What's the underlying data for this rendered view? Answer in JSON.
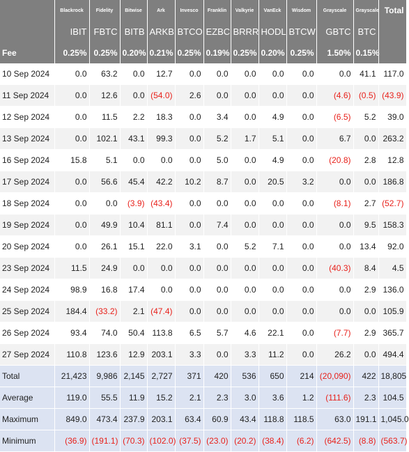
{
  "table": {
    "providers": [
      "Blackrock",
      "Fidelity",
      "Bitwise",
      "Ark",
      "Invesco",
      "Franklin",
      "Valkyrie",
      "VanEck",
      "Wisdom",
      "Grayscale",
      "Grayscale"
    ],
    "total_header": "Total",
    "tickers": [
      "IBIT",
      "FBTC",
      "BITB",
      "ARKB",
      "BTCO",
      "EZBC",
      "BRRR",
      "HODL",
      "BTCW",
      "GBTC",
      "BTC"
    ],
    "fee": {
      "label": "Fee",
      "values": [
        "0.25%",
        "0.25%",
        "0.20%",
        "0.21%",
        "0.25%",
        "0.19%",
        "0.25%",
        "0.20%",
        "0.25%",
        "1.50%",
        "0.15%"
      ],
      "total": ""
    },
    "days": [
      {
        "date": "10 Sep 2024",
        "values": [
          "0.0",
          "63.2",
          "0.0",
          "12.7",
          "0.0",
          "0.0",
          "0.0",
          "0.0",
          "0.0",
          "0.0",
          "41.1"
        ],
        "total": "117.0"
      },
      {
        "date": "11 Sep 2024",
        "values": [
          "0.0",
          "12.6",
          "0.0",
          "(54.0)",
          "2.6",
          "0.0",
          "0.0",
          "0.0",
          "0.0",
          "(4.6)",
          "(0.5)"
        ],
        "total": "(43.9)"
      },
      {
        "date": "12 Sep 2024",
        "values": [
          "0.0",
          "11.5",
          "2.2",
          "18.3",
          "0.0",
          "3.4",
          "0.0",
          "4.9",
          "0.0",
          "(6.5)",
          "5.2"
        ],
        "total": "39.0"
      },
      {
        "date": "13 Sep 2024",
        "values": [
          "0.0",
          "102.1",
          "43.1",
          "99.3",
          "0.0",
          "5.2",
          "1.7",
          "5.1",
          "0.0",
          "6.7",
          "0.0"
        ],
        "total": "263.2"
      },
      {
        "date": "16 Sep 2024",
        "values": [
          "15.8",
          "5.1",
          "0.0",
          "0.0",
          "0.0",
          "5.0",
          "0.0",
          "4.9",
          "0.0",
          "(20.8)",
          "2.8"
        ],
        "total": "12.8"
      },
      {
        "date": "17 Sep 2024",
        "values": [
          "0.0",
          "56.6",
          "45.4",
          "42.2",
          "10.2",
          "8.7",
          "0.0",
          "20.5",
          "3.2",
          "0.0",
          "0.0"
        ],
        "total": "186.8"
      },
      {
        "date": "18 Sep 2024",
        "values": [
          "0.0",
          "0.0",
          "(3.9)",
          "(43.4)",
          "0.0",
          "0.0",
          "0.0",
          "0.0",
          "0.0",
          "(8.1)",
          "2.7"
        ],
        "total": "(52.7)"
      },
      {
        "date": "19 Sep 2024",
        "values": [
          "0.0",
          "49.9",
          "10.4",
          "81.1",
          "0.0",
          "7.4",
          "0.0",
          "0.0",
          "0.0",
          "0.0",
          "9.5"
        ],
        "total": "158.3"
      },
      {
        "date": "20 Sep 2024",
        "values": [
          "0.0",
          "26.1",
          "15.1",
          "22.0",
          "3.1",
          "0.0",
          "5.2",
          "7.1",
          "0.0",
          "0.0",
          "13.4"
        ],
        "total": "92.0"
      },
      {
        "date": "23 Sep 2024",
        "values": [
          "11.5",
          "24.9",
          "0.0",
          "0.0",
          "0.0",
          "0.0",
          "0.0",
          "0.0",
          "0.0",
          "(40.3)",
          "8.4"
        ],
        "total": "4.5"
      },
      {
        "date": "24 Sep 2024",
        "values": [
          "98.9",
          "16.8",
          "17.4",
          "0.0",
          "0.0",
          "0.0",
          "0.0",
          "0.0",
          "0.0",
          "0.0",
          "2.9"
        ],
        "total": "136.0"
      },
      {
        "date": "25 Sep 2024",
        "values": [
          "184.4",
          "(33.2)",
          "2.1",
          "(47.4)",
          "0.0",
          "0.0",
          "0.0",
          "0.0",
          "0.0",
          "0.0",
          "0.0"
        ],
        "total": "105.9"
      },
      {
        "date": "26 Sep 2024",
        "values": [
          "93.4",
          "74.0",
          "50.4",
          "113.8",
          "6.5",
          "5.7",
          "4.6",
          "22.1",
          "0.0",
          "(7.7)",
          "2.9"
        ],
        "total": "365.7"
      },
      {
        "date": "27 Sep 2024",
        "values": [
          "110.8",
          "123.6",
          "12.9",
          "203.1",
          "3.3",
          "0.0",
          "3.3",
          "11.2",
          "0.0",
          "26.2",
          "0.0"
        ],
        "total": "494.4"
      }
    ],
    "summary": [
      {
        "label": "Total",
        "values": [
          "21,423",
          "9,986",
          "2,145",
          "2,727",
          "371",
          "420",
          "536",
          "650",
          "214",
          "(20,090)",
          "422"
        ],
        "total": "18,805"
      },
      {
        "label": "Average",
        "values": [
          "119.0",
          "55.5",
          "11.9",
          "15.2",
          "2.1",
          "2.3",
          "3.0",
          "3.6",
          "1.2",
          "(111.6)",
          "2.3"
        ],
        "total": "104.5"
      },
      {
        "label": "Maximum",
        "values": [
          "849.0",
          "473.4",
          "237.9",
          "203.1",
          "63.4",
          "60.9",
          "43.4",
          "118.8",
          "118.5",
          "63.0",
          "191.1"
        ],
        "total": "1,045.0"
      },
      {
        "label": "Minimum",
        "values": [
          "(36.9)",
          "(191.1)",
          "(70.3)",
          "(102.0)",
          "(37.5)",
          "(23.0)",
          "(20.2)",
          "(38.4)",
          "(6.2)",
          "(642.5)",
          "(8.8)"
        ],
        "total": "(563.7)"
      }
    ],
    "colors": {
      "header_bg": "#7f7f7f",
      "header_text": "#ffffff",
      "row_alt_bg": "#f2f2f2",
      "summary_bg": "#dce3f2",
      "negative_text": "#e8211b"
    }
  }
}
